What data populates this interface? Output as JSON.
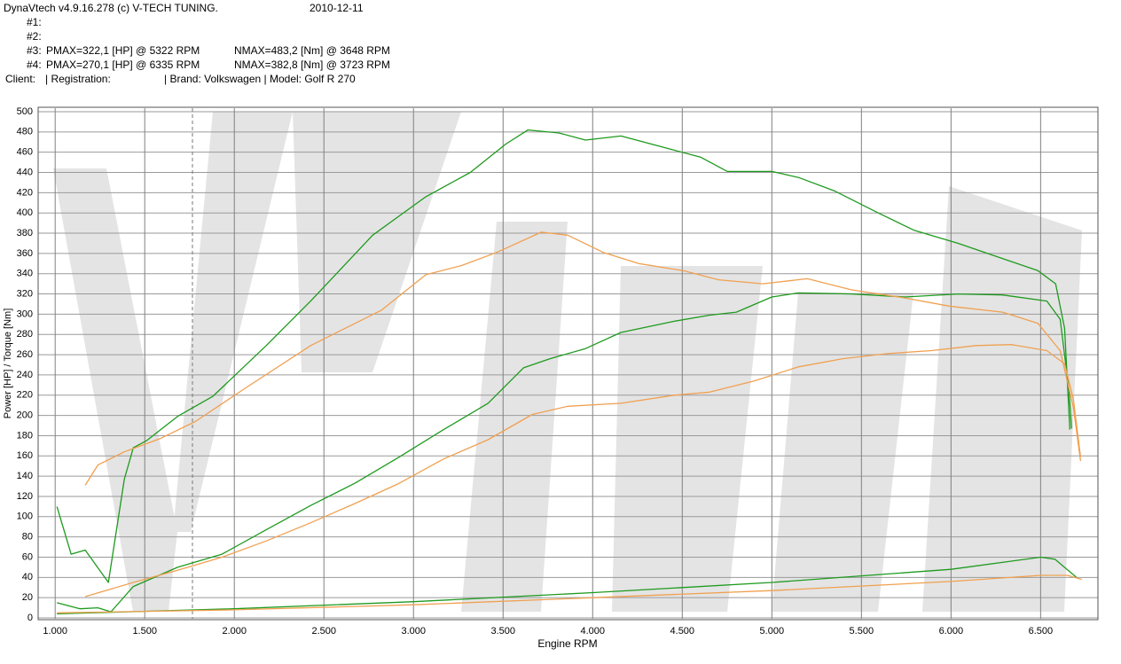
{
  "chart_data": {
    "type": "line",
    "header": {
      "program": "DynaVtech v4.9.16.278 (c) V-TECH TUNING.",
      "date": "2010-12-11",
      "runs": [
        {
          "label": "#1:"
        },
        {
          "label": "#2:"
        },
        {
          "label": "#3:",
          "pmax": "PMAX=322,1 [HP] @ 5322 RPM",
          "nmax": "NMAX=483,2 [Nm] @ 3648 RPM"
        },
        {
          "label": "#4:",
          "pmax": "PMAX=270,1 [HP] @ 6335 RPM",
          "nmax": "NMAX=382,8 [Nm] @ 3723 RPM"
        }
      ],
      "client": "Client:",
      "registration": "| Registration:",
      "vehicle": "| Brand: Volkswagen | Model: Golf R 270"
    },
    "xlabel": "Engine RPM",
    "ylabel": "Power [HP] / Torque [Nm]",
    "xlim": [
      905,
      6820
    ],
    "ylim": [
      0,
      500
    ],
    "xticks": [
      {
        "value": 1000,
        "label": "1.000"
      },
      {
        "value": 1500,
        "label": "1.500"
      },
      {
        "value": 2000,
        "label": "2.000"
      },
      {
        "value": 2500,
        "label": "2.500"
      },
      {
        "value": 3000,
        "label": "3.000"
      },
      {
        "value": 3500,
        "label": "3.500"
      },
      {
        "value": 4000,
        "label": "4.000"
      },
      {
        "value": 4500,
        "label": "4.500"
      },
      {
        "value": 5000,
        "label": "5.000"
      },
      {
        "value": 5500,
        "label": "5.500"
      },
      {
        "value": 6000,
        "label": "6.000"
      },
      {
        "value": 6500,
        "label": "6.500"
      }
    ],
    "yticks": [
      0,
      20,
      40,
      60,
      80,
      100,
      120,
      140,
      160,
      180,
      200,
      220,
      240,
      260,
      280,
      300,
      320,
      340,
      360,
      380,
      400,
      420,
      440,
      460,
      480,
      500
    ],
    "grid": true,
    "series": [
      {
        "color": "#1e9a1e",
        "x": [
          1010,
          1089,
          1168,
          1297,
          1386,
          1436,
          1510,
          1683,
          1881,
          2178,
          2426,
          2772,
          3069,
          3317,
          3515,
          3639,
          3812,
          3960,
          4158,
          4455,
          4604,
          4752,
          5000,
          5149,
          5347,
          5594,
          5792,
          6040,
          6287,
          6485,
          6584,
          6634,
          6663
        ],
        "values": [
          110,
          63,
          67,
          35,
          137,
          168,
          175,
          199,
          219,
          269,
          313,
          378,
          416,
          440,
          468,
          482,
          479,
          472,
          476,
          462,
          455,
          441,
          441,
          435,
          422,
          400,
          383,
          370,
          355,
          343,
          330,
          286,
          186
        ]
      },
      {
        "color": "#1e9a1e",
        "x": [
          1010,
          1139,
          1238,
          1312,
          1436,
          1683,
          1931,
          2178,
          2426,
          2673,
          2921,
          3168,
          3416,
          3614,
          3762,
          3960,
          4158,
          4455,
          4653,
          4802,
          5000,
          5149,
          5446,
          5743,
          6040,
          6287,
          6535,
          6609,
          6658,
          6673
        ],
        "values": [
          15,
          9,
          10,
          6,
          31,
          50,
          63,
          87,
          111,
          133,
          159,
          186,
          212,
          247,
          256,
          266,
          282,
          293,
          299,
          302,
          317,
          321,
          320,
          317,
          320,
          319,
          313,
          295,
          225,
          187
        ]
      },
      {
        "color": "#1e9a1e",
        "x": [
          1010,
          2000,
          3000,
          4000,
          5000,
          6000,
          6500,
          6580,
          6700
        ],
        "values": [
          4,
          9,
          16,
          25,
          35,
          48,
          60,
          58,
          40
        ]
      },
      {
        "color": "#f0a050",
        "x": [
          1168,
          1238,
          1386,
          1584,
          1782,
          2079,
          2426,
          2822,
          3069,
          3267,
          3465,
          3713,
          3861,
          4059,
          4257,
          4505,
          4703,
          4950,
          5198,
          5446,
          5743,
          5990,
          6287,
          6485,
          6609,
          6683,
          6723
        ],
        "values": [
          131,
          151,
          164,
          177,
          194,
          229,
          269,
          304,
          339,
          348,
          361,
          381,
          378,
          361,
          350,
          343,
          334,
          330,
          335,
          324,
          316,
          308,
          302,
          291,
          264,
          208,
          155
        ]
      },
      {
        "color": "#f0a050",
        "x": [
          1168,
          1436,
          1683,
          1931,
          2178,
          2426,
          2673,
          2921,
          3168,
          3416,
          3663,
          3861,
          4158,
          4455,
          4653,
          4901,
          5149,
          5396,
          5644,
          5891,
          6139,
          6337,
          6535,
          6634,
          6683,
          6723
        ],
        "values": [
          21,
          35,
          47,
          60,
          76,
          94,
          113,
          133,
          157,
          176,
          201,
          209,
          212,
          220,
          223,
          234,
          248,
          256,
          261,
          264,
          269,
          270,
          264,
          251,
          216,
          159
        ]
      },
      {
        "color": "#f0a050",
        "x": [
          1010,
          2000,
          3000,
          4000,
          5000,
          6000,
          6500,
          6650,
          6730
        ],
        "values": [
          5,
          8,
          13,
          20,
          27,
          36,
          42,
          42,
          38
        ]
      }
    ]
  }
}
